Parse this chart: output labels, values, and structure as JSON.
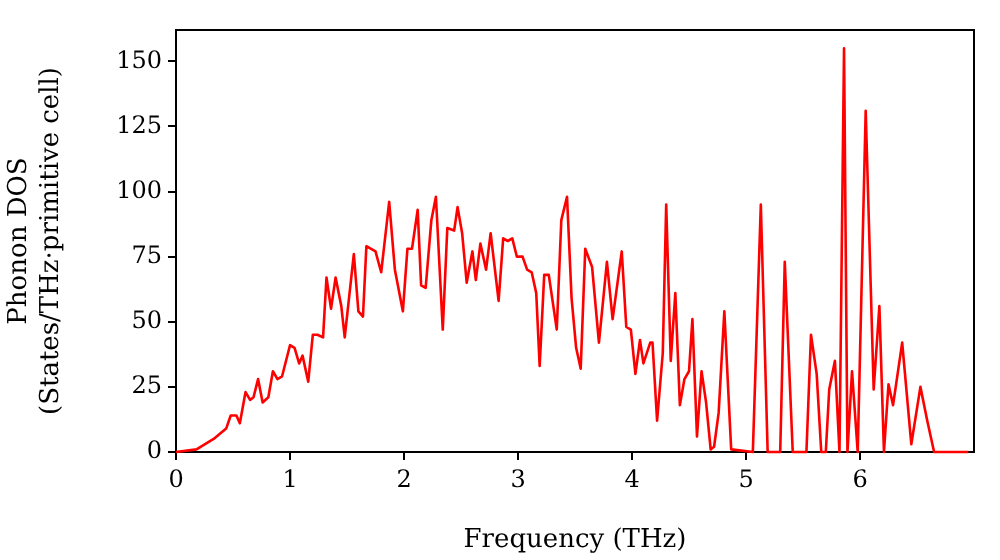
{
  "chart_data": {
    "type": "line",
    "xlabel": "Frequency (THz)",
    "ylabel": "Phonon DOS\n(States/THz·primitive cell)",
    "xlim": [
      0,
      7
    ],
    "ylim": [
      0,
      162
    ],
    "xticks": [
      0,
      1,
      2,
      3,
      4,
      5,
      6
    ],
    "yticks": [
      0,
      25,
      50,
      75,
      100,
      125,
      150
    ],
    "grid": false,
    "legend": false,
    "marker": "none",
    "line_style": "solid",
    "series": [
      {
        "color": "#ff0000",
        "x": [
          0,
          0.18,
          0.33,
          0.44,
          0.48,
          0.53,
          0.56,
          0.61,
          0.65,
          0.68,
          0.72,
          0.76,
          0.81,
          0.85,
          0.89,
          0.93,
          1.0,
          1.04,
          1.08,
          1.11,
          1.16,
          1.2,
          1.24,
          1.29,
          1.32,
          1.36,
          1.4,
          1.45,
          1.48,
          1.56,
          1.6,
          1.64,
          1.67,
          1.75,
          1.8,
          1.87,
          1.92,
          1.99,
          2.03,
          2.07,
          2.12,
          2.15,
          2.19,
          2.24,
          2.28,
          2.34,
          2.38,
          2.44,
          2.47,
          2.51,
          2.55,
          2.6,
          2.63,
          2.67,
          2.72,
          2.76,
          2.83,
          2.87,
          2.91,
          2.95,
          2.99,
          3.04,
          3.08,
          3.12,
          3.16,
          3.19,
          3.23,
          3.27,
          3.31,
          3.34,
          3.38,
          3.43,
          3.47,
          3.51,
          3.55,
          3.59,
          3.65,
          3.71,
          3.78,
          3.83,
          3.91,
          3.95,
          3.99,
          4.03,
          4.07,
          4.1,
          4.16,
          4.18,
          4.22,
          4.27,
          4.3,
          4.34,
          4.38,
          4.42,
          4.46,
          4.5,
          4.53,
          4.57,
          4.61,
          4.65,
          4.69,
          4.72,
          4.76,
          4.81,
          4.87,
          5.06,
          5.13,
          5.19,
          5.3,
          5.34,
          5.41,
          5.53,
          5.57,
          5.62,
          5.66,
          5.7,
          5.73,
          5.78,
          5.82,
          5.86,
          5.89,
          5.93,
          5.98,
          6.05,
          6.12,
          6.17,
          6.21,
          6.25,
          6.29,
          6.37,
          6.45,
          6.53,
          6.59,
          6.65,
          6.95
        ],
        "values": [
          0,
          1,
          5,
          9,
          14,
          14,
          11,
          23,
          20,
          21,
          28,
          19,
          21,
          31,
          28,
          29,
          41,
          40,
          34,
          37,
          27,
          45,
          45,
          44,
          67,
          55,
          67,
          56,
          44,
          76,
          54,
          52,
          79,
          77,
          69,
          96,
          70,
          54,
          78,
          78,
          93,
          64,
          63,
          89,
          98,
          47,
          86,
          85,
          94,
          84,
          65,
          77,
          66,
          80,
          70,
          84,
          58,
          82,
          81,
          82,
          75,
          75,
          70,
          69,
          61,
          33,
          68,
          68,
          56,
          47,
          89,
          98,
          59,
          40,
          32,
          78,
          71,
          42,
          73,
          51,
          77,
          48,
          47,
          30,
          43,
          34,
          42,
          42,
          12,
          38,
          95,
          35,
          61,
          18,
          28,
          31,
          51,
          6,
          31,
          19,
          1,
          2,
          15,
          54,
          1,
          0,
          95,
          0,
          0,
          73,
          0,
          0,
          45,
          30,
          0,
          0,
          24,
          35,
          0,
          155,
          0,
          31,
          0,
          131,
          24,
          56,
          0,
          26,
          18,
          42,
          3,
          25,
          12,
          0,
          0
        ]
      }
    ]
  }
}
